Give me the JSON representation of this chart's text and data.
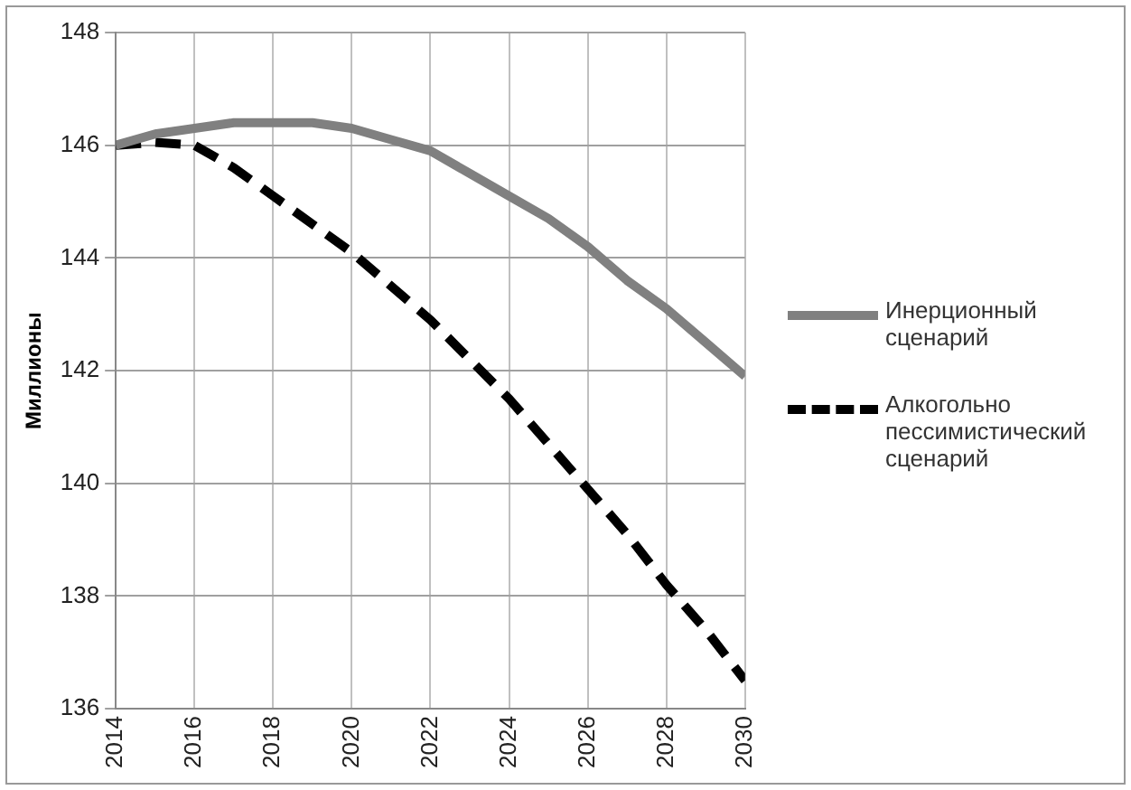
{
  "chart_data": {
    "type": "line",
    "ylabel": "Миллионы",
    "x": [
      2014,
      2015,
      2016,
      2017,
      2018,
      2019,
      2020,
      2021,
      2022,
      2023,
      2024,
      2025,
      2026,
      2027,
      2028,
      2029,
      2030
    ],
    "series": [
      {
        "name": "Инерционный сценарий",
        "color": "#808080",
        "line_style": "solid",
        "values": [
          146.0,
          146.2,
          146.3,
          146.4,
          146.4,
          146.4,
          146.3,
          146.1,
          145.9,
          145.5,
          145.1,
          144.7,
          144.2,
          143.6,
          143.1,
          142.5,
          141.9
        ]
      },
      {
        "name": "Алкогольно пессимистический сценарий",
        "color": "#000000",
        "line_style": "dashed",
        "values": [
          146.0,
          146.05,
          146.0,
          145.6,
          145.1,
          144.6,
          144.1,
          143.5,
          142.9,
          142.2,
          141.5,
          140.7,
          139.9,
          139.1,
          138.2,
          137.4,
          136.5
        ]
      }
    ],
    "xlim": [
      2014,
      2030
    ],
    "xticks": [
      2014,
      2016,
      2018,
      2020,
      2022,
      2024,
      2026,
      2028,
      2030
    ],
    "ylim": [
      136,
      148
    ],
    "yticks": [
      136,
      138,
      140,
      142,
      144,
      146,
      148
    ],
    "grid": true,
    "legend": "right",
    "marker": "none"
  }
}
